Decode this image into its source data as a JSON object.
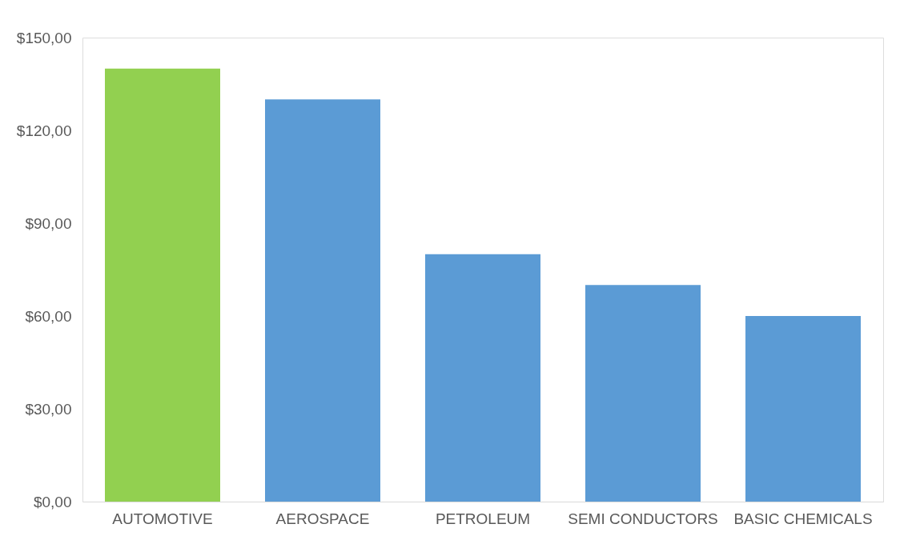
{
  "chart_data": {
    "type": "bar",
    "categories": [
      "AUTOMOTIVE",
      "AEROSPACE",
      "PETROLEUM",
      "SEMI CONDUCTORS",
      "BASIC CHEMICALS"
    ],
    "values": [
      140,
      130,
      80,
      70,
      60
    ],
    "colors": [
      "#92d050",
      "#5b9bd5",
      "#5b9bd5",
      "#5b9bd5",
      "#5b9bd5"
    ],
    "ylim": [
      0,
      150
    ],
    "yticks": [
      {
        "value": 0,
        "label": "$0,00"
      },
      {
        "value": 30,
        "label": "$30,00"
      },
      {
        "value": 60,
        "label": "$60,00"
      },
      {
        "value": 90,
        "label": "$90,00"
      },
      {
        "value": 120,
        "label": "$120,00"
      },
      {
        "value": 150,
        "label": "$150,00"
      }
    ],
    "grid": false,
    "legend": false
  }
}
